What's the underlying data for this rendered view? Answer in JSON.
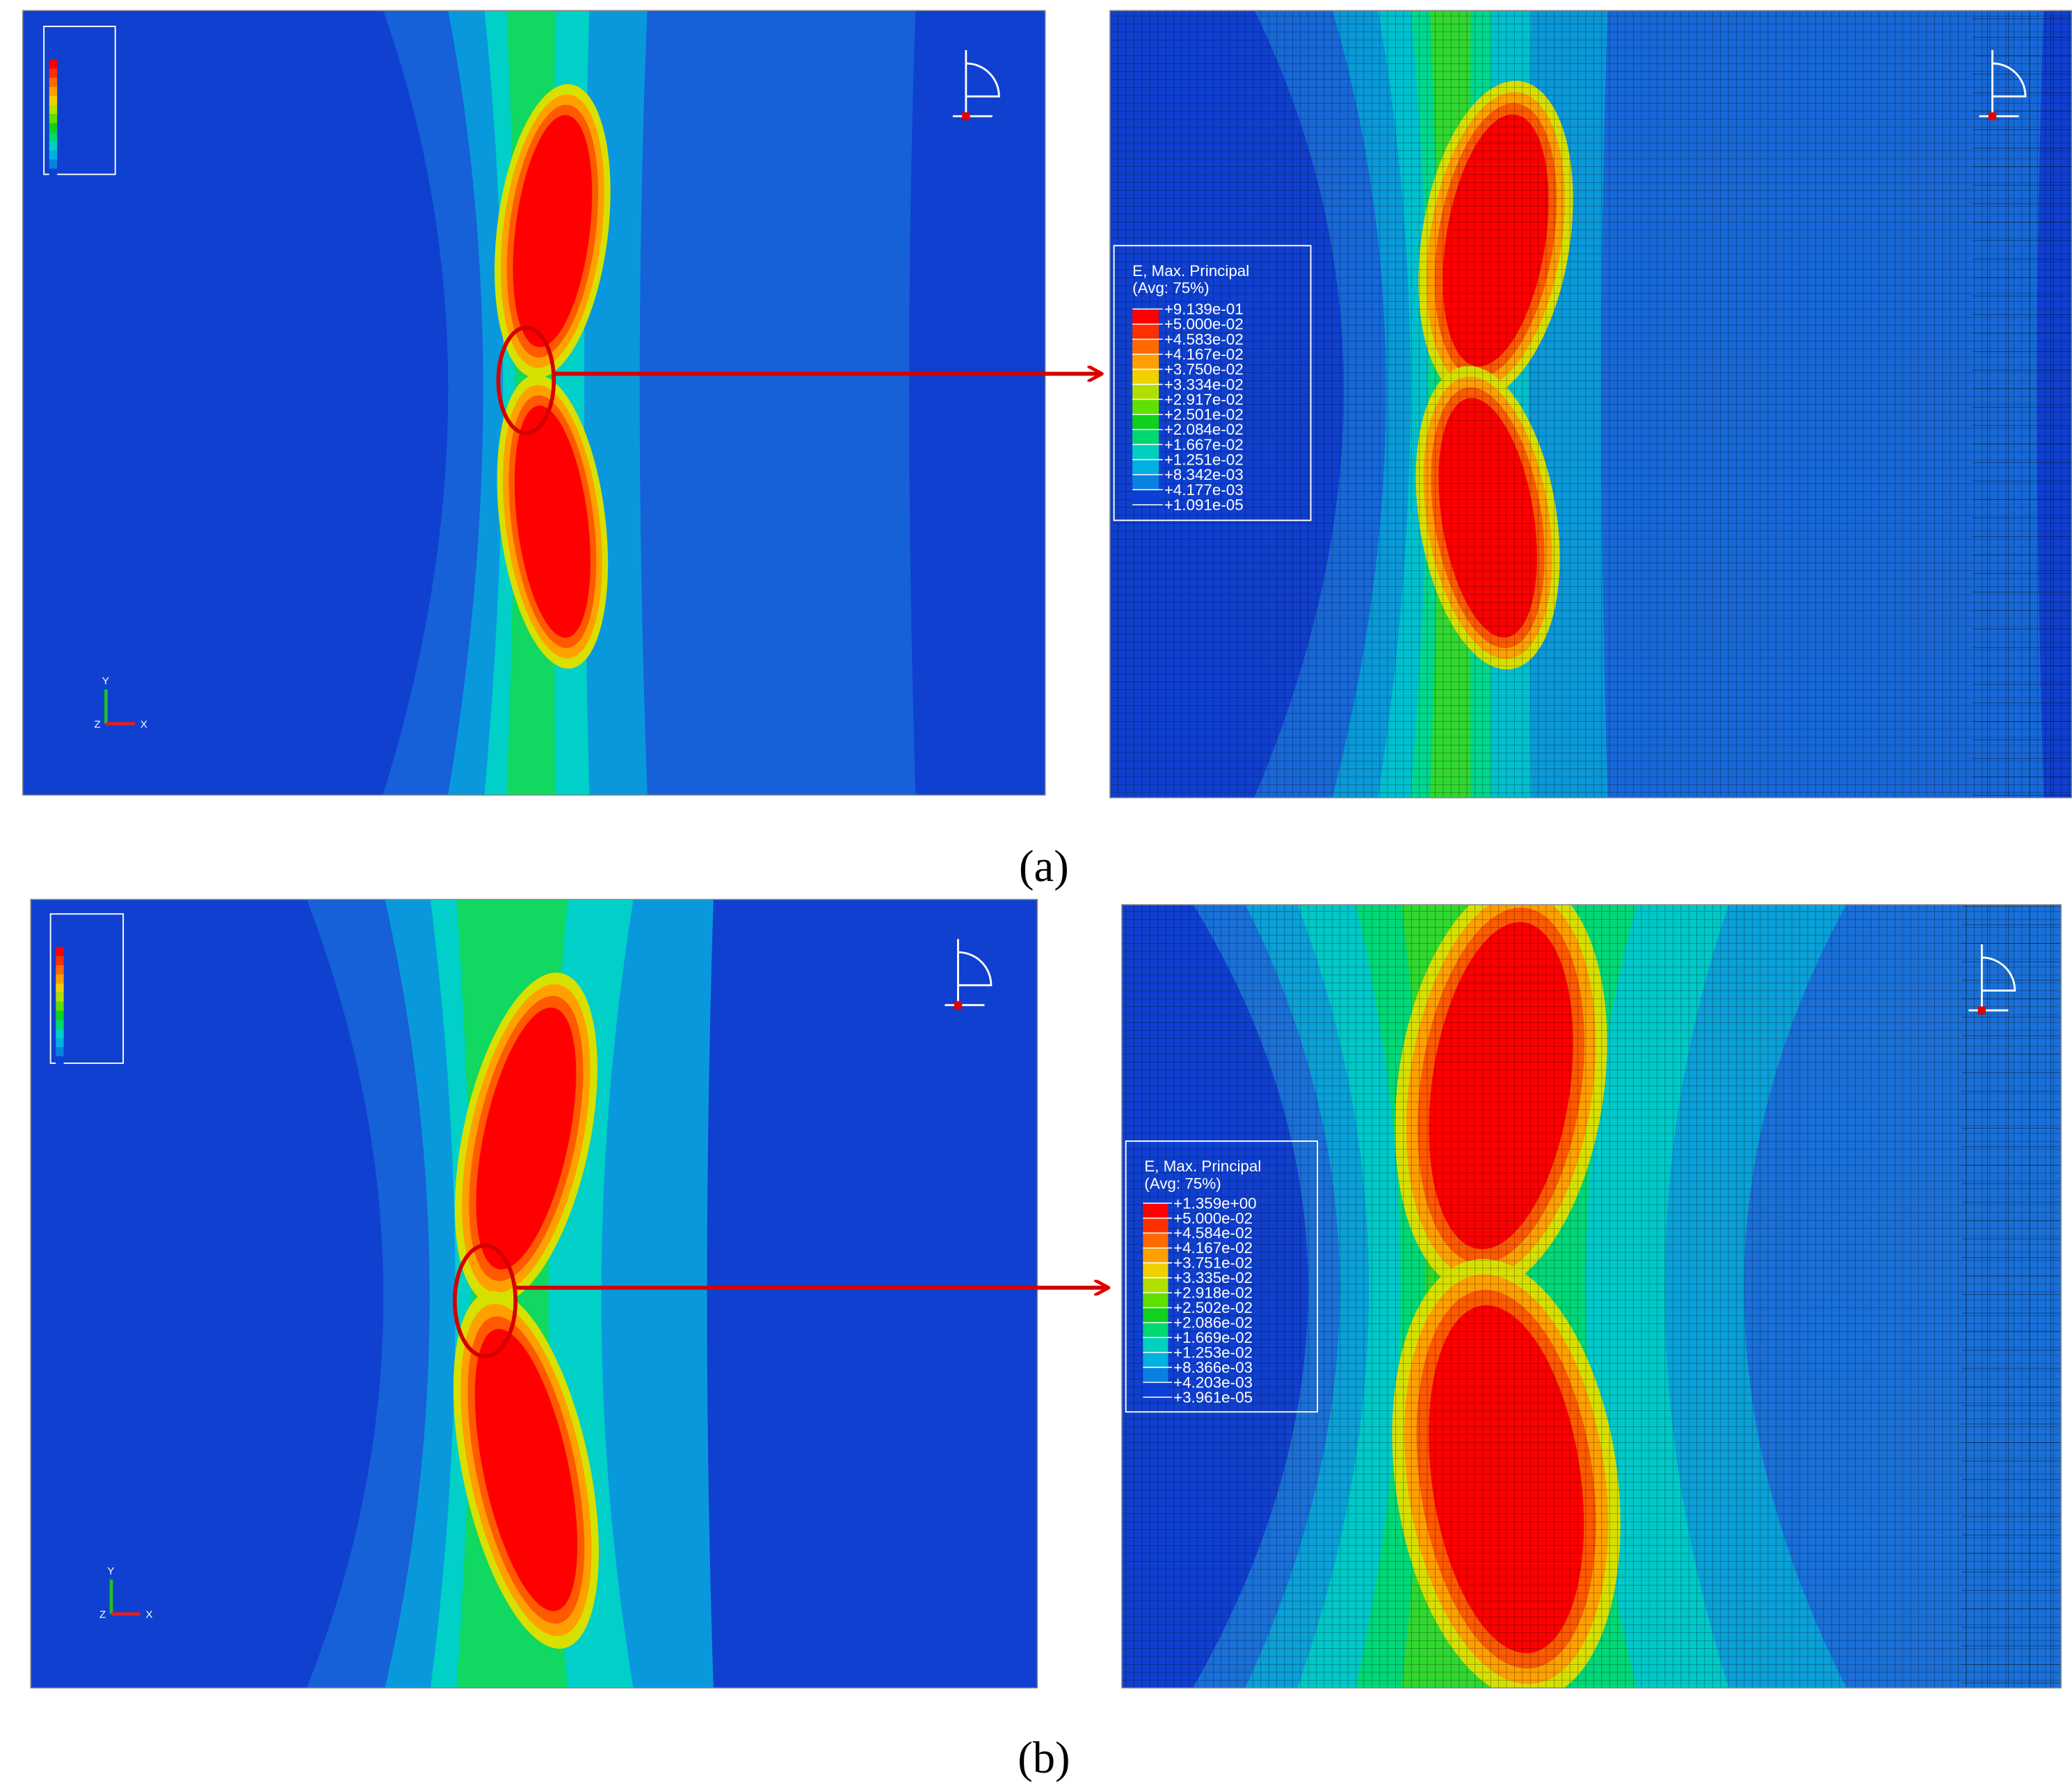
{
  "figure": {
    "panels": [
      {
        "label": "(a)",
        "legend": {
          "title": "E, Max. Principal",
          "subtitle": "(Avg: 75%)",
          "values": [
            "+9.139e-01",
            "+5.000e-02",
            "+4.583e-02",
            "+4.167e-02",
            "+3.750e-02",
            "+3.334e-02",
            "+2.917e-02",
            "+2.501e-02",
            "+2.084e-02",
            "+1.667e-02",
            "+1.251e-02",
            "+8.342e-03",
            "+4.177e-03",
            "+1.091e-05"
          ]
        }
      },
      {
        "label": "(b)",
        "legend": {
          "title": "E, Max. Principal",
          "subtitle": "(Avg: 75%)",
          "values": [
            "+1.359e+00",
            "+5.000e-02",
            "+4.584e-02",
            "+4.167e-02",
            "+3.751e-02",
            "+3.335e-02",
            "+2.918e-02",
            "+2.502e-02",
            "+2.086e-02",
            "+1.669e-02",
            "+1.253e-02",
            "+8.366e-03",
            "+4.203e-03",
            "+3.961e-05"
          ]
        }
      }
    ],
    "triad": {
      "y": "Y",
      "x": "X",
      "z": "Z"
    }
  }
}
